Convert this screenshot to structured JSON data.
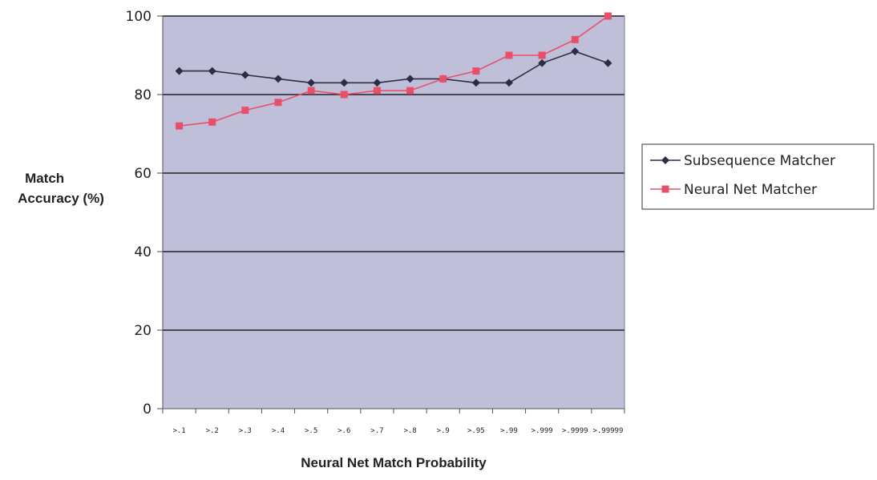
{
  "chart_data": {
    "type": "line",
    "title": "",
    "xlabel": "Neural Net Match Probability",
    "ylabel_lines": [
      "Match",
      "Accuracy (%)"
    ],
    "categories": [
      ">.1",
      ">.2",
      ">.3",
      ">.4",
      ">.5",
      ">.6",
      ">.7",
      ">.8",
      ">.9",
      ">.95",
      ">.99",
      ">.999",
      ">.9999",
      ">.99999"
    ],
    "ylim": [
      0,
      100
    ],
    "yticks": [
      "0",
      "20",
      "40",
      "60",
      "80",
      "100"
    ],
    "grid": true,
    "legend_position": "right",
    "plot_background": "#c0bfd9",
    "series": [
      {
        "name": "Subsequence Matcher",
        "color": "#2a2f45",
        "marker": "diamond",
        "values": [
          86,
          86,
          85,
          84,
          83,
          83,
          83,
          84,
          84,
          83,
          83,
          88,
          91,
          88
        ]
      },
      {
        "name": "Neural Net Matcher",
        "color": "#e8506a",
        "marker": "square",
        "values": [
          72,
          73,
          76,
          78,
          81,
          80,
          81,
          81,
          84,
          86,
          90,
          90,
          94,
          100
        ]
      }
    ]
  }
}
